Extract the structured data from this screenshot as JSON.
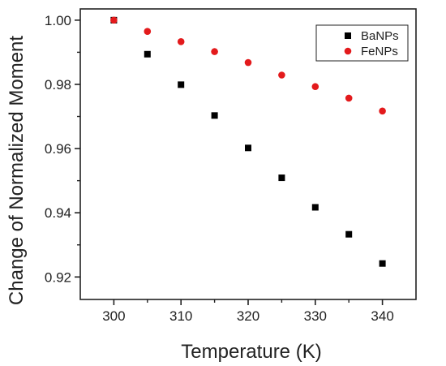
{
  "chart_data": {
    "type": "scatter",
    "xlabel": "Temperature (K)",
    "ylabel": "Change of Normalized Moment",
    "xlim": [
      295,
      345
    ],
    "ylim": [
      0.913,
      1.0035
    ],
    "xticks": [
      300,
      310,
      320,
      330,
      340
    ],
    "xticks_labeled": [
      "300",
      "310",
      "320",
      "330",
      "340"
    ],
    "xticks_minor": [
      305,
      315,
      325,
      335
    ],
    "yticks": [
      0.92,
      0.94,
      0.96,
      0.98,
      1.0
    ],
    "yticks_labeled": [
      "0.92",
      "0.94",
      "0.96",
      "0.98",
      "1.00"
    ],
    "yticks_minor": [
      0.93,
      0.95,
      0.97,
      0.99
    ],
    "grid": false,
    "legend_position": "top-right",
    "series": [
      {
        "name": "BaNPs",
        "marker": "square",
        "color": "#000000",
        "x": [
          300,
          305,
          310,
          315,
          320,
          325,
          330,
          335,
          340
        ],
        "y": [
          1.0,
          0.9894,
          0.9799,
          0.9703,
          0.9602,
          0.9509,
          0.9417,
          0.9333,
          0.9242
        ]
      },
      {
        "name": "FeNPs",
        "marker": "circle",
        "color": "#e31a1c",
        "x": [
          300,
          305,
          310,
          315,
          320,
          325,
          330,
          335,
          340
        ],
        "y": [
          1.0,
          0.9965,
          0.9933,
          0.9902,
          0.9868,
          0.9829,
          0.9793,
          0.9757,
          0.9717
        ]
      }
    ]
  }
}
